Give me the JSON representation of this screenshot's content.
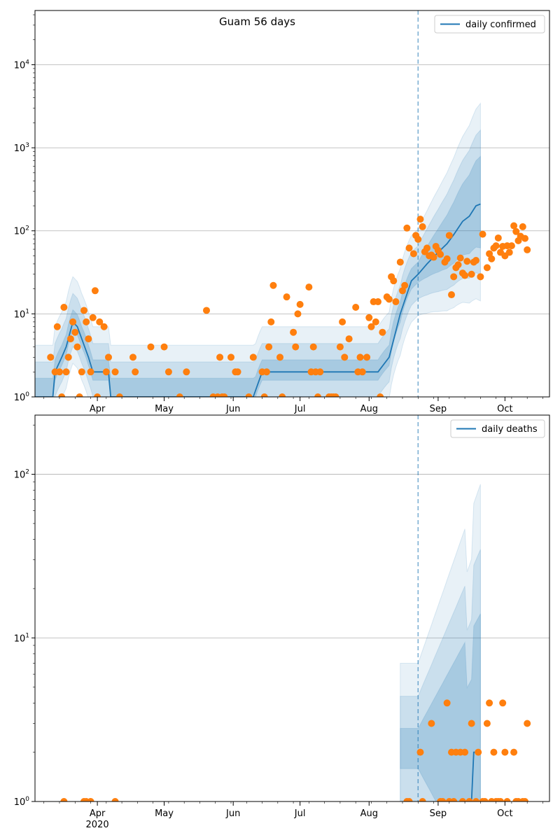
{
  "chart_data": [
    {
      "type": "line",
      "title": "Guam 56 days",
      "xlabel": "",
      "ylabel": "",
      "yscale": "log",
      "ylim": [
        1,
        45000
      ],
      "grid": "horizontal",
      "legend_position": "top-right",
      "forecast_start": "2020-08-23",
      "x_ticks": [
        {
          "date": "2020-04-01",
          "label": "Apr"
        },
        {
          "date": "2020-05-01",
          "label": "May"
        },
        {
          "date": "2020-06-01",
          "label": "Jun"
        },
        {
          "date": "2020-07-01",
          "label": "Jul"
        },
        {
          "date": "2020-08-01",
          "label": "Aug"
        },
        {
          "date": "2020-09-01",
          "label": "Sep"
        },
        {
          "date": "2020-10-01",
          "label": "Oct"
        }
      ],
      "year_label": "2020",
      "y_ticks": [
        {
          "value": 1,
          "base": "10",
          "exp": "0"
        },
        {
          "value": 10,
          "base": "10",
          "exp": "1"
        },
        {
          "value": 100,
          "base": "10",
          "exp": "2"
        },
        {
          "value": 1000,
          "base": "10",
          "exp": "3"
        },
        {
          "value": 10000,
          "base": "10",
          "exp": "4"
        }
      ],
      "series": [
        {
          "name": "daily confirmed",
          "color": "#1f77b4",
          "points": [
            [
              "2020-03-04",
              1
            ],
            [
              "2020-03-12",
              1
            ],
            [
              "2020-03-13",
              2
            ],
            [
              "2020-03-16",
              3
            ],
            [
              "2020-03-18",
              4
            ],
            [
              "2020-03-21",
              8
            ],
            [
              "2020-03-23",
              7
            ],
            [
              "2020-03-25",
              5
            ],
            [
              "2020-03-28",
              3
            ],
            [
              "2020-03-30",
              2
            ],
            [
              "2020-04-06",
              2
            ],
            [
              "2020-04-07",
              1
            ],
            [
              "2020-05-15",
              1
            ],
            [
              "2020-06-10",
              1
            ],
            [
              "2020-06-14",
              2
            ],
            [
              "2020-08-05",
              2
            ],
            [
              "2020-08-10",
              3
            ],
            [
              "2020-08-15",
              10
            ],
            [
              "2020-08-20",
              25
            ],
            [
              "2020-08-23",
              30
            ],
            [
              "2020-08-27",
              40
            ],
            [
              "2020-09-01",
              55
            ],
            [
              "2020-09-05",
              70
            ],
            [
              "2020-09-08",
              90
            ],
            [
              "2020-09-12",
              130
            ],
            [
              "2020-09-15",
              150
            ],
            [
              "2020-09-18",
              200
            ],
            [
              "2020-09-20",
              210
            ]
          ]
        },
        {
          "name": "",
          "color": "#ff7f0e",
          "kind": "observed",
          "points": [
            [
              "2020-03-11",
              3
            ],
            [
              "2020-03-13",
              2
            ],
            [
              "2020-03-14",
              7
            ],
            [
              "2020-03-15",
              2
            ],
            [
              "2020-03-16",
              1
            ],
            [
              "2020-03-17",
              12
            ],
            [
              "2020-03-18",
              2
            ],
            [
              "2020-03-19",
              3
            ],
            [
              "2020-03-20",
              5
            ],
            [
              "2020-03-21",
              8
            ],
            [
              "2020-03-22",
              6
            ],
            [
              "2020-03-23",
              4
            ],
            [
              "2020-03-24",
              1
            ],
            [
              "2020-03-25",
              2
            ],
            [
              "2020-03-26",
              11
            ],
            [
              "2020-03-27",
              8
            ],
            [
              "2020-03-28",
              5
            ],
            [
              "2020-03-29",
              2
            ],
            [
              "2020-03-30",
              9
            ],
            [
              "2020-03-31",
              19
            ],
            [
              "2020-04-01",
              1
            ],
            [
              "2020-04-02",
              8
            ],
            [
              "2020-04-04",
              7
            ],
            [
              "2020-04-05",
              2
            ],
            [
              "2020-04-06",
              3
            ],
            [
              "2020-04-09",
              2
            ],
            [
              "2020-04-11",
              1
            ],
            [
              "2020-04-17",
              3
            ],
            [
              "2020-04-18",
              2
            ],
            [
              "2020-04-25",
              4
            ],
            [
              "2020-05-01",
              4
            ],
            [
              "2020-05-03",
              2
            ],
            [
              "2020-05-08",
              1
            ],
            [
              "2020-05-11",
              2
            ],
            [
              "2020-05-20",
              11
            ],
            [
              "2020-05-23",
              1
            ],
            [
              "2020-05-25",
              1
            ],
            [
              "2020-05-26",
              3
            ],
            [
              "2020-05-27",
              1
            ],
            [
              "2020-05-28",
              1
            ],
            [
              "2020-05-31",
              3
            ],
            [
              "2020-06-02",
              2
            ],
            [
              "2020-06-03",
              2
            ],
            [
              "2020-06-08",
              1
            ],
            [
              "2020-06-10",
              3
            ],
            [
              "2020-06-14",
              2
            ],
            [
              "2020-06-15",
              1
            ],
            [
              "2020-06-16",
              2
            ],
            [
              "2020-06-17",
              4
            ],
            [
              "2020-06-18",
              8
            ],
            [
              "2020-06-19",
              22
            ],
            [
              "2020-06-22",
              3
            ],
            [
              "2020-06-23",
              1
            ],
            [
              "2020-06-25",
              16
            ],
            [
              "2020-06-28",
              6
            ],
            [
              "2020-06-29",
              4
            ],
            [
              "2020-06-30",
              10
            ],
            [
              "2020-07-01",
              13
            ],
            [
              "2020-07-05",
              21
            ],
            [
              "2020-07-06",
              2
            ],
            [
              "2020-07-07",
              4
            ],
            [
              "2020-07-08",
              2
            ],
            [
              "2020-07-09",
              1
            ],
            [
              "2020-07-10",
              2
            ],
            [
              "2020-07-14",
              1
            ],
            [
              "2020-07-15",
              1
            ],
            [
              "2020-07-16",
              1
            ],
            [
              "2020-07-17",
              1
            ],
            [
              "2020-07-19",
              4
            ],
            [
              "2020-07-20",
              8
            ],
            [
              "2020-07-21",
              3
            ],
            [
              "2020-07-23",
              5
            ],
            [
              "2020-07-26",
              12
            ],
            [
              "2020-07-27",
              2
            ],
            [
              "2020-07-28",
              3
            ],
            [
              "2020-07-29",
              2
            ],
            [
              "2020-07-31",
              3
            ],
            [
              "2020-08-01",
              9
            ],
            [
              "2020-08-02",
              7
            ],
            [
              "2020-08-03",
              14
            ],
            [
              "2020-08-04",
              8
            ],
            [
              "2020-08-05",
              14
            ],
            [
              "2020-08-06",
              1
            ],
            [
              "2020-08-07",
              6
            ],
            [
              "2020-08-09",
              16
            ],
            [
              "2020-08-10",
              15
            ],
            [
              "2020-08-11",
              28
            ],
            [
              "2020-08-12",
              25
            ],
            [
              "2020-08-13",
              14
            ],
            [
              "2020-08-15",
              42
            ],
            [
              "2020-08-16",
              19
            ],
            [
              "2020-08-17",
              22
            ],
            [
              "2020-08-18",
              108
            ],
            [
              "2020-08-19",
              62
            ],
            [
              "2020-08-21",
              53
            ],
            [
              "2020-08-22",
              88
            ],
            [
              "2020-08-23",
              79
            ],
            [
              "2020-08-24",
              138
            ],
            [
              "2020-08-25",
              112
            ],
            [
              "2020-08-26",
              56
            ],
            [
              "2020-08-27",
              62
            ],
            [
              "2020-08-28",
              50
            ],
            [
              "2020-08-29",
              51
            ],
            [
              "2020-08-30",
              48
            ],
            [
              "2020-08-31",
              65
            ],
            [
              "2020-09-01",
              58
            ],
            [
              "2020-09-02",
              52
            ],
            [
              "2020-09-04",
              42
            ],
            [
              "2020-09-05",
              46
            ],
            [
              "2020-09-06",
              88
            ],
            [
              "2020-09-07",
              17
            ],
            [
              "2020-09-08",
              28
            ],
            [
              "2020-09-09",
              36
            ],
            [
              "2020-09-10",
              39
            ],
            [
              "2020-09-11",
              47
            ],
            [
              "2020-09-12",
              31
            ],
            [
              "2020-09-13",
              29
            ],
            [
              "2020-09-14",
              43
            ],
            [
              "2020-09-16",
              30
            ],
            [
              "2020-09-17",
              42
            ],
            [
              "2020-09-18",
              44
            ],
            [
              "2020-09-20",
              28
            ],
            [
              "2020-09-21",
              91
            ],
            [
              "2020-09-23",
              36
            ],
            [
              "2020-09-24",
              53
            ],
            [
              "2020-09-25",
              46
            ],
            [
              "2020-09-26",
              62
            ],
            [
              "2020-09-27",
              66
            ],
            [
              "2020-09-28",
              82
            ],
            [
              "2020-09-29",
              55
            ],
            [
              "2020-09-30",
              65
            ],
            [
              "2020-10-01",
              50
            ],
            [
              "2020-10-02",
              66
            ],
            [
              "2020-10-03",
              55
            ],
            [
              "2020-10-04",
              66
            ],
            [
              "2020-10-05",
              115
            ],
            [
              "2020-10-06",
              98
            ],
            [
              "2020-10-07",
              76
            ],
            [
              "2020-10-08",
              86
            ],
            [
              "2020-10-09",
              112
            ],
            [
              "2020-10-10",
              81
            ],
            [
              "2020-10-11",
              59
            ]
          ]
        }
      ]
    },
    {
      "type": "line",
      "title": "",
      "xlabel": "",
      "ylabel": "",
      "yscale": "log",
      "ylim": [
        1,
        230
      ],
      "grid": "horizontal",
      "legend_position": "top-right",
      "forecast_start": "2020-08-23",
      "x_ticks": [
        {
          "date": "2020-04-01",
          "label": "Apr"
        },
        {
          "date": "2020-05-01",
          "label": "May"
        },
        {
          "date": "2020-06-01",
          "label": "Jun"
        },
        {
          "date": "2020-07-01",
          "label": "Jul"
        },
        {
          "date": "2020-08-01",
          "label": "Aug"
        },
        {
          "date": "2020-09-01",
          "label": "Sep"
        },
        {
          "date": "2020-10-01",
          "label": "Oct"
        }
      ],
      "year_label": "2020",
      "y_ticks": [
        {
          "value": 1,
          "base": "10",
          "exp": "0"
        },
        {
          "value": 10,
          "base": "10",
          "exp": "1"
        },
        {
          "value": 100,
          "base": "10",
          "exp": "2"
        }
      ],
      "series": [
        {
          "name": "daily deaths",
          "color": "#1f77b4",
          "points": [
            [
              "2020-09-14",
              1
            ],
            [
              "2020-09-16",
              1
            ],
            [
              "2020-09-17",
              2
            ],
            [
              "2020-09-20",
              2
            ]
          ]
        },
        {
          "name": "",
          "color": "#ff7f0e",
          "kind": "observed",
          "points": [
            [
              "2020-03-17",
              1
            ],
            [
              "2020-03-26",
              1
            ],
            [
              "2020-03-27",
              1
            ],
            [
              "2020-03-29",
              1
            ],
            [
              "2020-04-09",
              1
            ],
            [
              "2020-08-18",
              1
            ],
            [
              "2020-08-19",
              1
            ],
            [
              "2020-08-24",
              2
            ],
            [
              "2020-08-25",
              1
            ],
            [
              "2020-08-29",
              3
            ],
            [
              "2020-09-02",
              1
            ],
            [
              "2020-09-03",
              1
            ],
            [
              "2020-09-05",
              4
            ],
            [
              "2020-09-06",
              1
            ],
            [
              "2020-09-07",
              2
            ],
            [
              "2020-09-08",
              1
            ],
            [
              "2020-09-09",
              2
            ],
            [
              "2020-09-11",
              2
            ],
            [
              "2020-09-12",
              1
            ],
            [
              "2020-09-13",
              2
            ],
            [
              "2020-09-15",
              1
            ],
            [
              "2020-09-16",
              3
            ],
            [
              "2020-09-18",
              1
            ],
            [
              "2020-09-19",
              2
            ],
            [
              "2020-09-21",
              1
            ],
            [
              "2020-09-22",
              1
            ],
            [
              "2020-09-23",
              3
            ],
            [
              "2020-09-24",
              4
            ],
            [
              "2020-09-25",
              1
            ],
            [
              "2020-09-26",
              2
            ],
            [
              "2020-09-27",
              1
            ],
            [
              "2020-09-28",
              1
            ],
            [
              "2020-09-29",
              1
            ],
            [
              "2020-09-30",
              4
            ],
            [
              "2020-10-01",
              2
            ],
            [
              "2020-10-02",
              1
            ],
            [
              "2020-10-05",
              2
            ],
            [
              "2020-10-06",
              1
            ],
            [
              "2020-10-07",
              1
            ],
            [
              "2020-10-09",
              1
            ],
            [
              "2020-10-10",
              1
            ],
            [
              "2020-10-11",
              3
            ]
          ]
        }
      ]
    }
  ]
}
